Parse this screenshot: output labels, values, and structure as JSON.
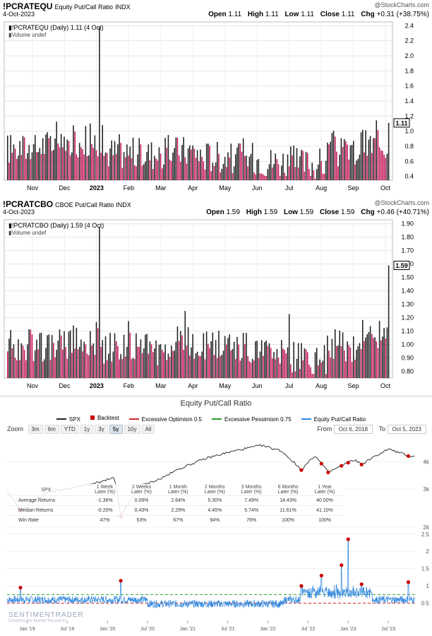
{
  "panels": [
    {
      "symbol": "!PCRATEQU",
      "name": "Equity Put/Call Ratio",
      "exchange": "INDX",
      "date": "4-Oct-2023",
      "legend_line1": "!PCRATEQU (Daily) 1.11 (4 Oct)",
      "legend_line2": "Volume undef",
      "ohlc": {
        "open_label": "Open",
        "open": "1.11",
        "high_label": "High",
        "high": "1.11",
        "low_label": "Low",
        "low": "1.11",
        "close_label": "Close",
        "close": "1.11",
        "chg_label": "Chg",
        "chg": "+0.31 (+38.75%)"
      },
      "logo": "@StockCharts.com",
      "last_value_label": "1.11"
    },
    {
      "symbol": "!PCRATCBO",
      "name": "CBOE Put/Call Ratio",
      "exchange": "INDX",
      "date": "4-Oct-2023",
      "legend_line1": "!PCRATCBO (Daily) 1.59 (4 Oct)",
      "legend_line2": "Volume undef",
      "ohlc": {
        "open_label": "Open",
        "open": "1.59",
        "high_label": "High",
        "high": "1.59",
        "low_label": "Low",
        "low": "1.59",
        "close_label": "Close",
        "close": "1.59",
        "chg_label": "Chg",
        "chg": "+0.46 (+40.71%)"
      },
      "logo": "@StockCharts.com",
      "last_value_label": "1.59"
    }
  ],
  "sentiment": {
    "title": "Equity Put/Call Ratio",
    "legend": [
      {
        "label": "SPX",
        "color": "#222222"
      },
      {
        "label": "Backtest",
        "color": "#cc0000"
      },
      {
        "label": "Excessive Optimism 0.5",
        "color": "#d62728"
      },
      {
        "label": "Excessive Pessimism 0.75",
        "color": "#2ca02c"
      },
      {
        "label": "Equity Put/Call Ratio",
        "color": "#2e86de"
      }
    ],
    "zoom_label": "Zoom",
    "zoom_options": [
      "3m",
      "6m",
      "YTD",
      "1y",
      "3y",
      "5y",
      "10y",
      "All"
    ],
    "zoom_selected": "5y",
    "from_label": "From",
    "from_value": "Oct 6, 2018",
    "to_label": "To",
    "to_value": "Oct 5, 2023",
    "watermark": "SENTIMENTRADER",
    "watermark_sub": "Emotions for Market Research",
    "table": {
      "corner": "SPX",
      "columns": [
        [
          "1 Week",
          "Later (%)"
        ],
        [
          "2 Weeks",
          "Later (%)"
        ],
        [
          "1 Month",
          "Later (%)"
        ],
        [
          "2 Months",
          "Later (%)"
        ],
        [
          "3 Months",
          "Later (%)"
        ],
        [
          "6 Months",
          "Later (%)"
        ],
        [
          "1 Year",
          "Later (%)"
        ]
      ],
      "rows": [
        {
          "label": "Average Returns",
          "values": [
            "-1.36%",
            "0.09%",
            "2.64%",
            "5.30%",
            "7.49%",
            "14.43%",
            "40.00%"
          ]
        },
        {
          "label": "Median Returns",
          "values": [
            "-0.20%",
            "0.43%",
            "2.29%",
            "4.45%",
            "5.74%",
            "11.61%",
            "41.10%"
          ]
        },
        {
          "label": "Win Rate",
          "values": [
            "47%",
            "53%",
            "67%",
            "94%",
            "76%",
            "100%",
            "100%"
          ]
        }
      ]
    }
  },
  "chart_data": [
    {
      "type": "bar",
      "title": "!PCRATEQU Equity Put/Call Ratio",
      "x_ticks": [
        "Nov",
        "Dec",
        "2023",
        "Feb",
        "Mar",
        "Apr",
        "May",
        "Jun",
        "Jul",
        "Aug",
        "Sep",
        "Oct"
      ],
      "y_ticks": [
        "0.4",
        "0.6",
        "0.8",
        "1.0",
        "1.2",
        "1.4",
        "1.6",
        "1.8",
        "2.0",
        "2.2",
        "2.4"
      ],
      "ylim": [
        0.35,
        2.45
      ],
      "last_value": 1.11,
      "peak_value": 2.38,
      "bar_colors": {
        "up": "#222222",
        "down": "#c2185b"
      },
      "monthly_typical": [
        {
          "month": "Oct-22",
          "value": 0.75
        },
        {
          "month": "Nov-22",
          "value": 0.8
        },
        {
          "month": "Dec-22",
          "value": 0.85
        },
        {
          "month": "Jan-23",
          "value": 0.7
        },
        {
          "month": "Feb-23",
          "value": 0.68
        },
        {
          "month": "Mar-23",
          "value": 0.72
        },
        {
          "month": "Apr-23",
          "value": 0.65
        },
        {
          "month": "May-23",
          "value": 0.62
        },
        {
          "month": "Jun-23",
          "value": 0.58
        },
        {
          "month": "Jul-23",
          "value": 0.55
        },
        {
          "month": "Aug-23",
          "value": 0.7
        },
        {
          "month": "Sep-23",
          "value": 0.8
        }
      ],
      "grid": true
    },
    {
      "type": "bar",
      "title": "!PCRATCBO CBOE Put/Call Ratio",
      "x_ticks": [
        "Nov",
        "Dec",
        "2023",
        "Feb",
        "Mar",
        "Apr",
        "May",
        "Jun",
        "Jul",
        "Aug",
        "Sep",
        "Oct"
      ],
      "y_ticks": [
        "0.80",
        "0.90",
        "1.00",
        "1.10",
        "1.20",
        "1.30",
        "1.40",
        "1.50",
        "1.60",
        "1.70",
        "1.80",
        "1.90"
      ],
      "ylim": [
        0.75,
        1.93
      ],
      "last_value": 1.59,
      "peak_value": 1.88,
      "bar_colors": {
        "up": "#222222",
        "down": "#c2185b"
      },
      "monthly_typical": [
        {
          "month": "Oct-22",
          "value": 0.98
        },
        {
          "month": "Nov-22",
          "value": 0.98
        },
        {
          "month": "Dec-22",
          "value": 1.02
        },
        {
          "month": "Jan-23",
          "value": 0.96
        },
        {
          "month": "Feb-23",
          "value": 0.95
        },
        {
          "month": "Mar-23",
          "value": 1.0
        },
        {
          "month": "Apr-23",
          "value": 0.97
        },
        {
          "month": "May-23",
          "value": 0.96
        },
        {
          "month": "Jun-23",
          "value": 0.9
        },
        {
          "month": "Jul-23",
          "value": 0.88
        },
        {
          "month": "Aug-23",
          "value": 0.98
        },
        {
          "month": "Sep-23",
          "value": 1.06
        }
      ],
      "grid": true
    },
    {
      "type": "line",
      "title": "Equity Put/Call Ratio",
      "x_ticks": [
        "Jan '19",
        "Jul '19",
        "Jan '20",
        "Jul '20",
        "Jan '21",
        "Jul '21",
        "Jan '22",
        "Jul '22",
        "Jan '23",
        "Jul '23"
      ],
      "spx_ticks": [
        "2k",
        "3k",
        "4k"
      ],
      "ratio_ticks": [
        "0.5",
        "1",
        "1.5",
        "2",
        "2.5"
      ],
      "series": [
        {
          "name": "SPX",
          "points": [
            [
              "2018-10",
              2900
            ],
            [
              "2018-12",
              2400
            ],
            [
              "2019-04",
              2900
            ],
            [
              "2019-07",
              3000
            ],
            [
              "2019-12",
              3230
            ],
            [
              "2020-02",
              3380
            ],
            [
              "2020-03",
              2240
            ],
            [
              "2020-06",
              3100
            ],
            [
              "2020-09",
              3350
            ],
            [
              "2020-12",
              3750
            ],
            [
              "2021-04",
              4180
            ],
            [
              "2021-08",
              4500
            ],
            [
              "2021-12",
              4770
            ],
            [
              "2022-03",
              4500
            ],
            [
              "2022-06",
              3670
            ],
            [
              "2022-08",
              4280
            ],
            [
              "2022-10",
              3580
            ],
            [
              "2022-12",
              3840
            ],
            [
              "2023-02",
              4100
            ],
            [
              "2023-03",
              3890
            ],
            [
              "2023-07",
              4590
            ],
            [
              "2023-10",
              4260
            ]
          ]
        },
        {
          "name": "Equity Put/Call Ratio",
          "typical_level": 0.6,
          "spikes": [
            [
              "2018-12",
              0.95
            ],
            [
              "2020-03",
              1.15
            ],
            [
              "2022-06",
              1.0
            ],
            [
              "2022-09",
              1.3
            ],
            [
              "2022-12",
              1.6
            ],
            [
              "2023-01",
              2.35
            ],
            [
              "2023-03",
              1.05
            ],
            [
              "2023-10",
              1.11
            ]
          ]
        }
      ],
      "thresholds": [
        {
          "name": "Excessive Optimism",
          "value": 0.5
        },
        {
          "name": "Excessive Pessimism",
          "value": 0.75
        }
      ],
      "backtest_signals": [
        "2018-12",
        "2020-03",
        "2022-06",
        "2022-09",
        "2022-10",
        "2022-12",
        "2023-01",
        "2023-03",
        "2023-10"
      ]
    }
  ]
}
